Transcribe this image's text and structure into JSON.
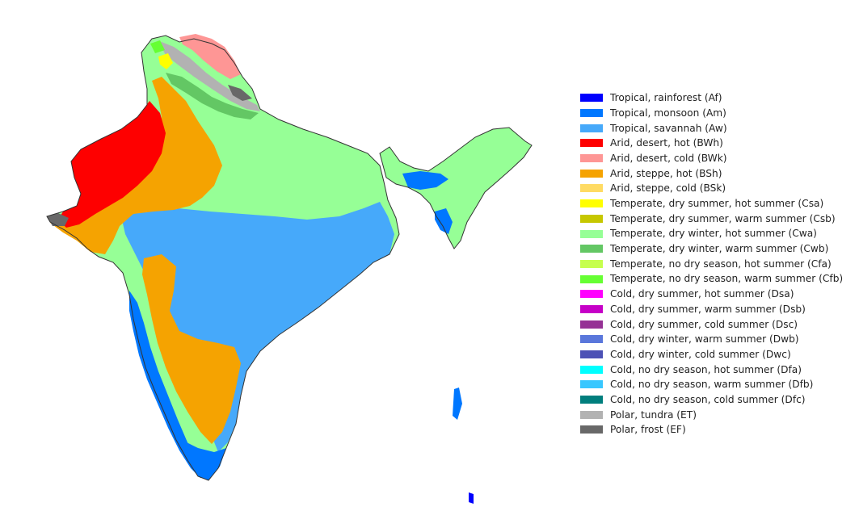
{
  "legend": {
    "items": [
      {
        "label": "Tropical, rainforest (Af)",
        "color": "#0000fe"
      },
      {
        "label": "Tropical, monsoon (Am)",
        "color": "#0077ff"
      },
      {
        "label": "Tropical, savannah (Aw)",
        "color": "#46a9fa"
      },
      {
        "label": "Arid, desert, hot (BWh)",
        "color": "#fe0000"
      },
      {
        "label": "Arid, desert, cold (BWk)",
        "color": "#fe9695"
      },
      {
        "label": "Arid, steppe, hot (BSh)",
        "color": "#f5a301"
      },
      {
        "label": "Arid, steppe, cold (BSk)",
        "color": "#ffdb63"
      },
      {
        "label": "Temperate, dry summer, hot summer (Csa)",
        "color": "#ffff00"
      },
      {
        "label": "Temperate, dry summer, warm summer (Csb)",
        "color": "#c6c700"
      },
      {
        "label": "Temperate, dry winter, hot summer (Cwa)",
        "color": "#96ff96"
      },
      {
        "label": "Temperate, dry winter, warm summer (Cwb)",
        "color": "#63c764"
      },
      {
        "label": "Temperate, no dry season, hot summer (Cfa)",
        "color": "#c6ff4e"
      },
      {
        "label": "Temperate, no dry season, warm summer (Cfb)",
        "color": "#66ff33"
      },
      {
        "label": "Cold, dry summer, hot summer (Dsa)",
        "color": "#ff00fe"
      },
      {
        "label": "Cold, dry summer, warm summer (Dsb)",
        "color": "#c600c7"
      },
      {
        "label": "Cold, dry summer, cold summer (Dsc)",
        "color": "#963295"
      },
      {
        "label": "Cold, dry winter, warm summer (Dwb)",
        "color": "#5a77db"
      },
      {
        "label": "Cold, dry winter, cold summer (Dwc)",
        "color": "#4c51b5"
      },
      {
        "label": "Cold, no dry season, hot summer (Dfa)",
        "color": "#00ffff"
      },
      {
        "label": "Cold, no dry season, warm summer (Dfb)",
        "color": "#38c7ff"
      },
      {
        "label": "Cold, no dry season, cold summer (Dfc)",
        "color": "#007e7d"
      },
      {
        "label": "Polar, tundra (ET)",
        "color": "#b2b2b2"
      },
      {
        "label": "Polar, frost (EF)",
        "color": "#686868"
      }
    ]
  },
  "map": {
    "colors": {
      "Af": "#0000fe",
      "Am": "#0077ff",
      "Aw": "#46a9fa",
      "BWh": "#fe0000",
      "BWk": "#fe9695",
      "BSh": "#f5a301",
      "Csa": "#ffff00",
      "Cwa": "#96ff96",
      "Cwb": "#63c764",
      "Cfb": "#66ff33",
      "ET": "#b2b2b2",
      "EF": "#686868",
      "outline": "#333333"
    }
  }
}
